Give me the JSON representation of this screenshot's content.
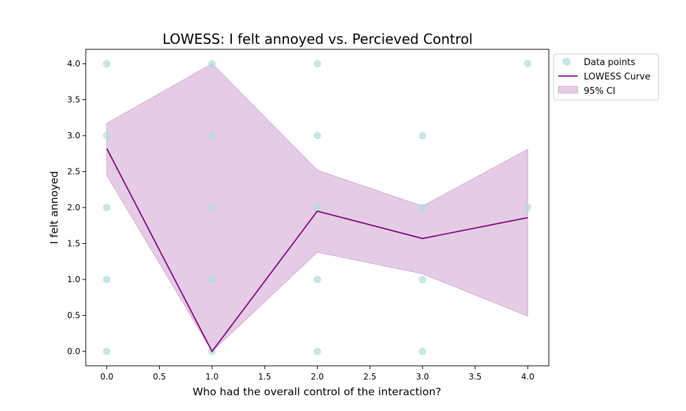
{
  "chart_data": {
    "type": "scatter",
    "title": "LOWESS: I felt annoyed vs. Percieved Control",
    "xlabel": "Who had the overall control of the interaction?",
    "ylabel": "I felt annoyed",
    "xlim": [
      -0.2,
      4.2
    ],
    "ylim": [
      -0.2,
      4.2
    ],
    "x_ticks": [
      "0.0",
      "0.5",
      "1.0",
      "1.5",
      "2.0",
      "2.5",
      "3.0",
      "3.5",
      "4.0"
    ],
    "y_ticks": [
      "0.0",
      "0.5",
      "1.0",
      "1.5",
      "2.0",
      "2.5",
      "3.0",
      "3.5",
      "4.0"
    ],
    "grid": false,
    "legend_position": "outside top-right",
    "series": [
      {
        "name": "Data points",
        "kind": "scatter",
        "color": "#b0dcdc",
        "points": [
          [
            0,
            4
          ],
          [
            0,
            3
          ],
          [
            0,
            2
          ],
          [
            0,
            1
          ],
          [
            0,
            0
          ],
          [
            1,
            4
          ],
          [
            1,
            3
          ],
          [
            1,
            2
          ],
          [
            1,
            1
          ],
          [
            1,
            0
          ],
          [
            2,
            4
          ],
          [
            2,
            3
          ],
          [
            2,
            2
          ],
          [
            2,
            1
          ],
          [
            2,
            0
          ],
          [
            3,
            3
          ],
          [
            3,
            2
          ],
          [
            3,
            1
          ],
          [
            3,
            0
          ],
          [
            4,
            4
          ],
          [
            4,
            2
          ]
        ]
      },
      {
        "name": "LOWESS Curve",
        "kind": "line",
        "color": "#800080",
        "x": [
          0,
          1,
          2,
          3,
          4
        ],
        "y": [
          2.82,
          0.0,
          1.95,
          1.57,
          1.86
        ]
      },
      {
        "name": "95% CI",
        "kind": "band",
        "color": "#c68ec6",
        "x": [
          0,
          1,
          2,
          3,
          4
        ],
        "lower": [
          2.45,
          0.0,
          1.38,
          1.08,
          0.49
        ],
        "upper": [
          3.17,
          4.0,
          2.52,
          2.02,
          2.81
        ]
      }
    ]
  }
}
